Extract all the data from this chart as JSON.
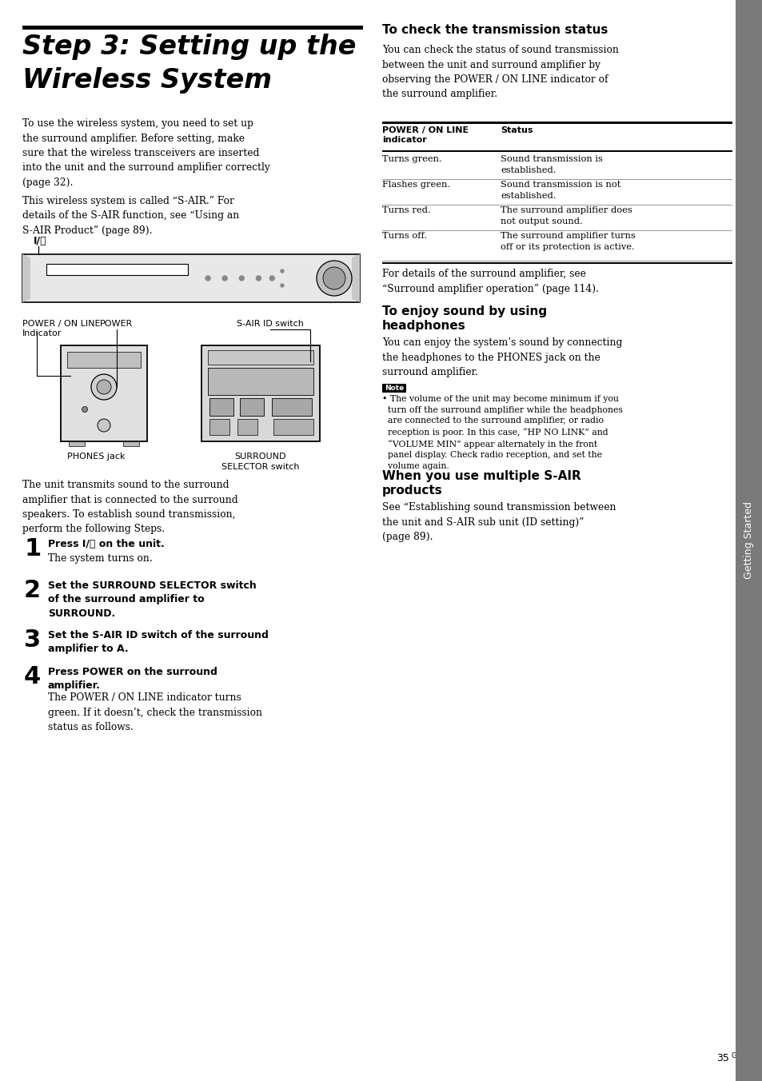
{
  "bg_color": "#ffffff",
  "sidebar_color": "#7a7a7a",
  "sidebar_text": "Getting Started",
  "page_number": "35",
  "page_number_sup": "GB",
  "title_line1": "Step 3: Setting up the",
  "title_line2": "Wireless System",
  "intro_text1": "To use the wireless system, you need to set up\nthe surround amplifier. Before setting, make\nsure that the wireless transceivers are inserted\ninto the unit and the surround amplifier correctly\n(page 32).",
  "intro_text2": "This wireless system is called “S-AIR.” For\ndetails of the S-AIR function, see “Using an\nS-AIR Product” (page 89).",
  "label_io": "I/⏻",
  "label_power_online": "POWER / ON LINE\nIndicator",
  "label_power": "POWER",
  "label_sair_id": "S-AIR ID switch",
  "label_phones": "PHONES jack",
  "label_surround": "SURROUND\nSELECTOR switch",
  "body_text": "The unit transmits sound to the surround\namplifier that is connected to the surround\nspeakers. To establish sound transmission,\nperform the following Steps.",
  "step1_bold": "Press I/⏻ on the unit.",
  "step1_normal": "The system turns on.",
  "step2_bold": "Set the SURROUND SELECTOR switch\nof the surround amplifier to\nSURROUND.",
  "step3_bold": "Set the S-AIR ID switch of the surround\namplifier to A.",
  "step4_bold": "Press POWER on the surround\namplifier.",
  "step4_normal": "The POWER / ON LINE indicator turns\ngreen. If it doesn’t, check the transmission\nstatus as follows.",
  "right_title1": "To check the transmission status",
  "right_intro": "You can check the status of sound transmission\nbetween the unit and surround amplifier by\nobserving the POWER / ON LINE indicator of\nthe surround amplifier.",
  "table_col1_header": "POWER / ON LINE\nindicator",
  "table_col2_header": "Status",
  "table_rows": [
    [
      "Turns green.",
      "Sound transmission is\nestablished."
    ],
    [
      "Flashes green.",
      "Sound transmission is not\nestablished."
    ],
    [
      "Turns red.",
      "The surround amplifier does\nnot output sound."
    ],
    [
      "Turns off.",
      "The surround amplifier turns\noff or its protection is active."
    ]
  ],
  "after_table": "For details of the surround amplifier, see\n“Surround amplifier operation” (page 114).",
  "right_title2_line1": "To enjoy sound by using",
  "right_title2_line2": "headphones",
  "headphones_text": "You can enjoy the system’s sound by connecting\nthe headphones to the PHONES jack on the\nsurround amplifier.",
  "note_label": "Note",
  "note_bullet": "• The volume of the unit may become minimum if you\n  turn off the surround amplifier while the headphones\n  are connected to the surround amplifier, or radio\n  reception is poor. In this case, “HP NO LINK” and\n  “VOLUME MIN” appear alternately in the front\n  panel display. Check radio reception, and set the\n  volume again.",
  "right_title3_line1": "When you use multiple S-AIR",
  "right_title3_line2": "products",
  "sair_text": "See “Establishing sound transmission between\nthe unit and S-AIR sub unit (ID setting)”\n(page 89)."
}
